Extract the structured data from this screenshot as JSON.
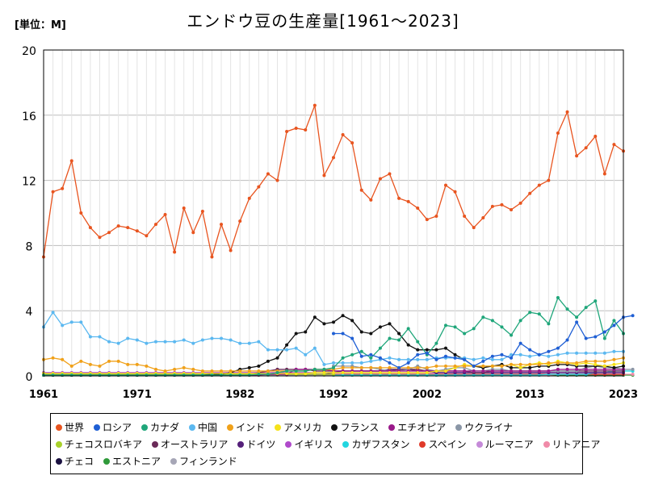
{
  "header": {
    "title": "エンドウ豆の生産量[1961～2023]",
    "unit": "[単位：M]"
  },
  "chart_data": {
    "type": "line",
    "title": "エンドウ豆の生産量[1961～2023]",
    "unit_label": "[単位：M]",
    "xlabel": "",
    "ylabel": "",
    "xlim": [
      1961,
      2023
    ],
    "ylim": [
      0,
      20
    ],
    "x_ticks": [
      1961,
      1971,
      1982,
      1992,
      2002,
      2013,
      2023
    ],
    "y_ticks": [
      0,
      4,
      8,
      12,
      16,
      20
    ],
    "grid": true,
    "legend_position": "bottom",
    "series": [
      {
        "name": "世界",
        "color": "#e8541f",
        "x_start": 1961,
        "values": [
          7.3,
          11.3,
          11.5,
          13.2,
          10.0,
          9.1,
          8.5,
          8.8,
          9.2,
          9.1,
          8.9,
          8.6,
          9.3,
          9.9,
          7.6,
          10.3,
          8.8,
          10.1,
          7.3,
          9.3,
          7.7,
          9.5,
          10.9,
          11.6,
          12.4,
          12.0,
          15.0,
          15.2,
          15.1,
          16.6,
          12.3,
          13.4,
          14.8,
          14.3,
          11.4,
          10.8,
          12.1,
          12.4,
          10.9,
          10.7,
          10.3,
          9.6,
          9.8,
          11.7,
          11.3,
          9.8,
          9.1,
          9.7,
          10.4,
          10.5,
          10.2,
          10.6,
          11.2,
          11.7,
          12.0,
          14.9,
          16.2,
          13.5,
          14.0,
          14.7,
          12.4,
          14.2,
          13.8
        ]
      },
      {
        "name": "ロシア",
        "color": "#1f5fd4",
        "x_start": 1992,
        "values": [
          2.6,
          2.6,
          2.3,
          1.2,
          1.3,
          1.1,
          0.8,
          0.5,
          0.8,
          1.3,
          1.4,
          1.0,
          1.2,
          1.1,
          1.0,
          0.6,
          0.9,
          1.2,
          1.3,
          1.1,
          2.0,
          1.6,
          1.3,
          1.5,
          1.7,
          2.2,
          3.3,
          2.3,
          2.4,
          2.7,
          3.1,
          3.6,
          3.7
        ]
      },
      {
        "name": "カナダ",
        "color": "#1fa67a",
        "x_start": 1961,
        "values": [
          0.05,
          0.05,
          0.05,
          0.05,
          0.05,
          0.05,
          0.05,
          0.05,
          0.05,
          0.05,
          0.05,
          0.05,
          0.05,
          0.05,
          0.05,
          0.05,
          0.05,
          0.05,
          0.05,
          0.05,
          0.05,
          0.05,
          0.05,
          0.1,
          0.1,
          0.2,
          0.3,
          0.3,
          0.3,
          0.4,
          0.4,
          0.5,
          1.1,
          1.3,
          1.5,
          1.1,
          1.7,
          2.3,
          2.2,
          2.9,
          2.1,
          1.3,
          2.0,
          3.1,
          3.0,
          2.6,
          2.9,
          3.6,
          3.4,
          3.0,
          2.5,
          3.4,
          3.9,
          3.8,
          3.2,
          4.8,
          4.1,
          3.6,
          4.2,
          4.6,
          2.3,
          3.4,
          2.6
        ]
      },
      {
        "name": "中国",
        "color": "#5bb8f0",
        "x_start": 1961,
        "values": [
          3.0,
          3.9,
          3.1,
          3.3,
          3.3,
          2.4,
          2.4,
          2.1,
          2.0,
          2.3,
          2.2,
          2.0,
          2.1,
          2.1,
          2.1,
          2.2,
          2.0,
          2.2,
          2.3,
          2.3,
          2.2,
          2.0,
          2.0,
          2.1,
          1.6,
          1.6,
          1.6,
          1.7,
          1.3,
          1.7,
          0.7,
          0.8,
          0.8,
          0.8,
          0.8,
          0.9,
          1.0,
          1.1,
          1.0,
          1.0,
          1.0,
          1.0,
          1.1,
          1.1,
          1.1,
          1.1,
          1.0,
          1.1,
          1.0,
          1.0,
          1.3,
          1.3,
          1.2,
          1.3,
          1.2,
          1.3,
          1.4,
          1.4,
          1.4,
          1.4,
          1.4,
          1.5,
          1.5
        ]
      },
      {
        "name": "インド",
        "color": "#f0a11a",
        "x_start": 1961,
        "values": [
          1.0,
          1.1,
          1.0,
          0.6,
          0.9,
          0.7,
          0.6,
          0.9,
          0.9,
          0.7,
          0.7,
          0.6,
          0.4,
          0.3,
          0.4,
          0.5,
          0.4,
          0.3,
          0.3,
          0.3,
          0.3,
          0.3,
          0.3,
          0.3,
          0.3,
          0.3,
          0.3,
          0.3,
          0.3,
          0.4,
          0.4,
          0.4,
          0.5,
          0.5,
          0.5,
          0.5,
          0.5,
          0.5,
          0.5,
          0.5,
          0.5,
          0.5,
          0.6,
          0.6,
          0.6,
          0.6,
          0.6,
          0.6,
          0.6,
          0.6,
          0.7,
          0.7,
          0.7,
          0.7,
          0.8,
          0.8,
          0.8,
          0.8,
          0.9,
          0.9,
          0.9,
          1.0,
          1.1
        ]
      },
      {
        "name": "アメリカ",
        "color": "#f5e21a",
        "x_start": 1961,
        "values": [
          0.15,
          0.15,
          0.15,
          0.15,
          0.15,
          0.15,
          0.15,
          0.15,
          0.15,
          0.15,
          0.15,
          0.15,
          0.15,
          0.15,
          0.15,
          0.15,
          0.15,
          0.15,
          0.15,
          0.15,
          0.15,
          0.15,
          0.15,
          0.15,
          0.15,
          0.15,
          0.15,
          0.15,
          0.15,
          0.2,
          0.2,
          0.2,
          0.2,
          0.2,
          0.2,
          0.2,
          0.2,
          0.2,
          0.2,
          0.2,
          0.2,
          0.2,
          0.3,
          0.3,
          0.5,
          0.7,
          0.6,
          0.6,
          0.6,
          0.6,
          0.7,
          0.5,
          0.7,
          0.8,
          0.7,
          0.9,
          0.8,
          0.7,
          0.8,
          0.7,
          0.6,
          0.7,
          0.8
        ]
      },
      {
        "name": "フランス",
        "color": "#111111",
        "x_start": 1961,
        "values": [
          0.05,
          0.05,
          0.05,
          0.05,
          0.05,
          0.05,
          0.05,
          0.05,
          0.05,
          0.05,
          0.05,
          0.05,
          0.05,
          0.05,
          0.05,
          0.05,
          0.05,
          0.05,
          0.1,
          0.1,
          0.2,
          0.4,
          0.5,
          0.6,
          0.9,
          1.1,
          1.9,
          2.6,
          2.7,
          3.6,
          3.2,
          3.3,
          3.7,
          3.4,
          2.7,
          2.6,
          3.0,
          3.2,
          2.6,
          1.9,
          1.6,
          1.6,
          1.6,
          1.7,
          1.3,
          1.0,
          0.6,
          0.5,
          0.6,
          0.7,
          0.5,
          0.5,
          0.5,
          0.6,
          0.6,
          0.7,
          0.7,
          0.6,
          0.6,
          0.6,
          0.6,
          0.5,
          0.6
        ]
      },
      {
        "name": "エチオピア",
        "color": "#9a1a8a",
        "x_start": 1961,
        "values": [
          0.05,
          0.05,
          0.05,
          0.05,
          0.05,
          0.05,
          0.05,
          0.05,
          0.05,
          0.05,
          0.05,
          0.05,
          0.05,
          0.05,
          0.05,
          0.05,
          0.05,
          0.05,
          0.05,
          0.05,
          0.05,
          0.05,
          0.05,
          0.05,
          0.1,
          0.1,
          0.1,
          0.4,
          0.4,
          0.4,
          0.4,
          0.3,
          0.3,
          0.3,
          0.3,
          0.3,
          0.3,
          0.3,
          0.3,
          0.3,
          0.3,
          0.3,
          0.3,
          0.3,
          0.3,
          0.3,
          0.3,
          0.3,
          0.3,
          0.3,
          0.3,
          0.3,
          0.3,
          0.3,
          0.3,
          0.4,
          0.4,
          0.4,
          0.4,
          0.4,
          0.4,
          0.4,
          0.4
        ]
      },
      {
        "name": "ウクライナ",
        "color": "#8a96a6",
        "x_start": 1992,
        "values": [
          0.6,
          0.6,
          0.6,
          0.5,
          0.5,
          0.4,
          0.3,
          0.3,
          0.4,
          0.6,
          0.4,
          0.3,
          0.4,
          0.5,
          0.5,
          0.3,
          0.3,
          0.4,
          0.4,
          0.3,
          0.3,
          0.3,
          0.3,
          0.3,
          0.3,
          0.3,
          0.3,
          0.5,
          0.6,
          0.5,
          0.5,
          0.4,
          0.4
        ]
      },
      {
        "name": "チェコスロバキア",
        "color": "#a8d12a",
        "x_start": 1961,
        "values": [
          0.1,
          0.1,
          0.1,
          0.1,
          0.1,
          0.1,
          0.1,
          0.1,
          0.1,
          0.1,
          0.1,
          0.1,
          0.1,
          0.1,
          0.1,
          0.1,
          0.1,
          0.1,
          0.1,
          0.1,
          0.1,
          0.1,
          0.1,
          0.1,
          0.1,
          0.1,
          0.1,
          0.1,
          0.1,
          0.1,
          0.1,
          0.1
        ]
      },
      {
        "name": "オーストラリア",
        "color": "#6a2a58",
        "x_start": 1961,
        "values": [
          0.05,
          0.05,
          0.05,
          0.05,
          0.05,
          0.05,
          0.05,
          0.05,
          0.05,
          0.05,
          0.05,
          0.05,
          0.05,
          0.05,
          0.05,
          0.05,
          0.05,
          0.05,
          0.05,
          0.05,
          0.05,
          0.1,
          0.1,
          0.2,
          0.3,
          0.4,
          0.4,
          0.4,
          0.4,
          0.3,
          0.3,
          0.3,
          0.3,
          0.3,
          0.3,
          0.3,
          0.3,
          0.3,
          0.4,
          0.4,
          0.4,
          0.3,
          0.3,
          0.3,
          0.3,
          0.3,
          0.2,
          0.2,
          0.3,
          0.3,
          0.3,
          0.3,
          0.3,
          0.3,
          0.3,
          0.3,
          0.3,
          0.3,
          0.3,
          0.3,
          0.3,
          0.3,
          0.3
        ]
      },
      {
        "name": "ドイツ",
        "color": "#55207a",
        "x_start": 1961,
        "values": [
          0.1,
          0.1,
          0.1,
          0.1,
          0.1,
          0.1,
          0.1,
          0.1,
          0.1,
          0.1,
          0.1,
          0.1,
          0.1,
          0.1,
          0.1,
          0.1,
          0.1,
          0.1,
          0.1,
          0.1,
          0.1,
          0.1,
          0.1,
          0.1,
          0.1,
          0.1,
          0.1,
          0.1,
          0.1,
          0.1,
          0.1,
          0.2,
          0.3,
          0.3,
          0.3,
          0.3,
          0.3,
          0.4,
          0.4,
          0.4,
          0.3,
          0.3,
          0.2,
          0.2,
          0.2,
          0.2,
          0.2,
          0.2,
          0.2,
          0.2,
          0.2,
          0.2,
          0.2,
          0.2,
          0.2,
          0.2,
          0.2,
          0.2,
          0.2,
          0.2,
          0.2,
          0.2,
          0.2
        ]
      },
      {
        "name": "イギリス",
        "color": "#b04acb",
        "x_start": 1961,
        "values": [
          0.2,
          0.2,
          0.2,
          0.2,
          0.2,
          0.2,
          0.2,
          0.2,
          0.2,
          0.2,
          0.2,
          0.2,
          0.2,
          0.2,
          0.2,
          0.2,
          0.2,
          0.2,
          0.2,
          0.2,
          0.2,
          0.2,
          0.2,
          0.2,
          0.2,
          0.2,
          0.2,
          0.2,
          0.2,
          0.2,
          0.2,
          0.2,
          0.2,
          0.2,
          0.2,
          0.2,
          0.2,
          0.2,
          0.2,
          0.2,
          0.2,
          0.2,
          0.2,
          0.2,
          0.2,
          0.2,
          0.2,
          0.2,
          0.2,
          0.2,
          0.2,
          0.2,
          0.2,
          0.2,
          0.2,
          0.2,
          0.2,
          0.2,
          0.2,
          0.2,
          0.2,
          0.2,
          0.2
        ]
      },
      {
        "name": "カザフスタン",
        "color": "#22d6e0",
        "x_start": 1992,
        "values": [
          0.05,
          0.05,
          0.05,
          0.05,
          0.05,
          0.05,
          0.05,
          0.05,
          0.05,
          0.05,
          0.05,
          0.05,
          0.05,
          0.05,
          0.05,
          0.05,
          0.05,
          0.05,
          0.05,
          0.05,
          0.05,
          0.05,
          0.05,
          0.1,
          0.1,
          0.1,
          0.1,
          0.1,
          0.2,
          0.2,
          0.3,
          0.3,
          0.3
        ]
      },
      {
        "name": "スペイン",
        "color": "#e03a2a",
        "x_start": 1961,
        "values": [
          0.1,
          0.1,
          0.1,
          0.1,
          0.1,
          0.1,
          0.1,
          0.1,
          0.1,
          0.1,
          0.1,
          0.1,
          0.1,
          0.1,
          0.1,
          0.1,
          0.1,
          0.1,
          0.1,
          0.1,
          0.1,
          0.1,
          0.1,
          0.1,
          0.1,
          0.1,
          0.1,
          0.1,
          0.1,
          0.1,
          0.1,
          0.1,
          0.1,
          0.1,
          0.1,
          0.1,
          0.1,
          0.1,
          0.1,
          0.1,
          0.1,
          0.1,
          0.1,
          0.1,
          0.1,
          0.1,
          0.1,
          0.1,
          0.1,
          0.1,
          0.1,
          0.1,
          0.1,
          0.1,
          0.1,
          0.1,
          0.1,
          0.1,
          0.1,
          0.1,
          0.1,
          0.1,
          0.1
        ]
      },
      {
        "name": "ルーマニア",
        "color": "#c58ad8",
        "x_start": 1961,
        "values": [
          0.1,
          0.1,
          0.1,
          0.1,
          0.1,
          0.1,
          0.1,
          0.1,
          0.1,
          0.1,
          0.1,
          0.1,
          0.1,
          0.1,
          0.1,
          0.1,
          0.1,
          0.1,
          0.1,
          0.1,
          0.1,
          0.1,
          0.1,
          0.1,
          0.1,
          0.1,
          0.1,
          0.1,
          0.1,
          0.1,
          0.1,
          0.1,
          0.1,
          0.1,
          0.1,
          0.1,
          0.1,
          0.1,
          0.1,
          0.1,
          0.1,
          0.1,
          0.1,
          0.1,
          0.1,
          0.1,
          0.1,
          0.1,
          0.1,
          0.1,
          0.1,
          0.1,
          0.1,
          0.1,
          0.1,
          0.1,
          0.1,
          0.1,
          0.1,
          0.1,
          0.1,
          0.1,
          0.1
        ]
      },
      {
        "name": "リトアニア",
        "color": "#f08aa8",
        "x_start": 1992,
        "values": [
          0.05,
          0.05,
          0.05,
          0.05,
          0.05,
          0.05,
          0.05,
          0.05,
          0.05,
          0.05,
          0.05,
          0.05,
          0.05,
          0.05,
          0.05,
          0.05,
          0.05,
          0.05,
          0.05,
          0.05,
          0.05,
          0.05,
          0.05,
          0.05,
          0.1,
          0.1,
          0.1,
          0.1,
          0.1,
          0.1,
          0.1,
          0.1,
          0.1
        ]
      },
      {
        "name": "チェコ",
        "color": "#1a1040",
        "x_start": 1993,
        "values": [
          0.1,
          0.1,
          0.1,
          0.1,
          0.1,
          0.1,
          0.1,
          0.1,
          0.1,
          0.1,
          0.1,
          0.1,
          0.1,
          0.1,
          0.1,
          0.1,
          0.1,
          0.1,
          0.1,
          0.1,
          0.1,
          0.1,
          0.1,
          0.1,
          0.1,
          0.1,
          0.1,
          0.1,
          0.1,
          0.1,
          0.1
        ]
      },
      {
        "name": "エストニア",
        "color": "#2f9a3a",
        "x_start": 1992,
        "values": [
          0.05,
          0.05,
          0.05,
          0.05,
          0.05,
          0.05,
          0.05,
          0.05,
          0.05,
          0.05,
          0.05,
          0.05,
          0.05,
          0.05,
          0.05,
          0.05,
          0.05,
          0.05,
          0.05,
          0.05,
          0.05,
          0.05,
          0.05,
          0.05,
          0.05,
          0.05,
          0.05,
          0.05,
          0.05,
          0.05,
          0.05,
          0.05,
          0.05
        ]
      },
      {
        "name": "フィンランド",
        "color": "#a6a6b6",
        "x_start": 1961,
        "values": [
          0.05,
          0.05,
          0.05,
          0.05,
          0.05,
          0.05,
          0.05,
          0.05,
          0.05,
          0.05,
          0.05,
          0.05,
          0.05,
          0.05,
          0.05,
          0.05,
          0.05,
          0.05,
          0.05,
          0.05,
          0.05,
          0.05,
          0.05,
          0.05,
          0.05,
          0.05,
          0.05,
          0.05,
          0.05,
          0.05,
          0.05,
          0.05,
          0.05,
          0.05,
          0.05,
          0.05,
          0.05,
          0.05,
          0.05,
          0.05,
          0.05,
          0.05,
          0.05,
          0.05,
          0.05,
          0.05,
          0.05,
          0.05,
          0.05,
          0.05,
          0.05,
          0.05,
          0.05,
          0.05,
          0.05,
          0.05,
          0.05,
          0.05,
          0.05,
          0.05,
          0.05,
          0.05,
          0.05
        ]
      }
    ]
  }
}
